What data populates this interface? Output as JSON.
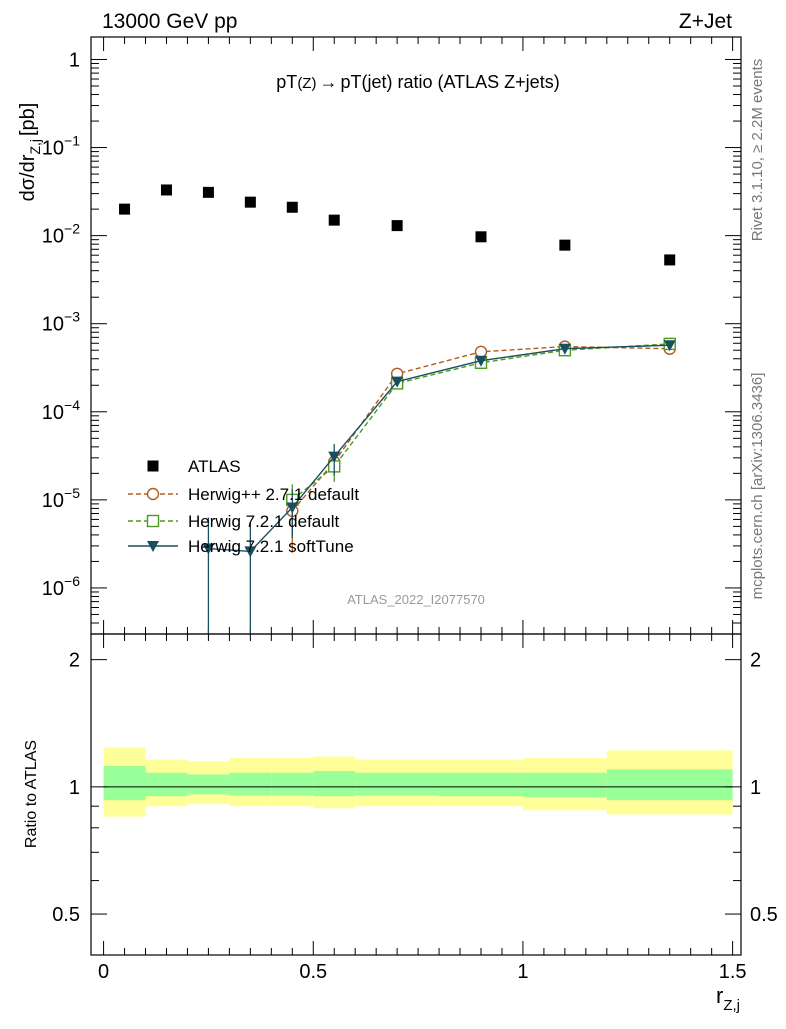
{
  "header": {
    "left": "13000 GeV pp",
    "right": "Z+Jet"
  },
  "side_labels": {
    "rivet": "Rivet 3.1.10, ≥ 2.2M events",
    "mcplots": "mcplots.cern.ch [arXiv:1306.3436]"
  },
  "watermark": "ATLAS_2022_I2077570",
  "chart_data": [
    {
      "type": "scatter",
      "panel": "main",
      "title": "pT(Z) → pT(jet) ratio (ATLAS Z+jets)",
      "title_parts": {
        "a": "pT",
        "b": "(Z)",
        "arrow": "→",
        "c": "pT(jet) ratio (ATLAS Z+jets)"
      },
      "ylabel": "dσ/dr",
      "ylabel_sub": "Z,j",
      "ylabel_unit": "[pb]",
      "yscale": "log",
      "xlim": [
        -0.03,
        1.52
      ],
      "ylim": [
        3e-07,
        1.8
      ],
      "ytick_labels": [
        {
          "value": 1,
          "base": "1",
          "exp": ""
        },
        {
          "value": 0.1,
          "base": "10",
          "exp": "−1"
        },
        {
          "value": 0.01,
          "base": "10",
          "exp": "−2"
        },
        {
          "value": 0.001,
          "base": "10",
          "exp": "−3"
        },
        {
          "value": 0.0001,
          "base": "10",
          "exp": "−4"
        },
        {
          "value": 1e-05,
          "base": "10",
          "exp": "−5"
        },
        {
          "value": 1e-06,
          "base": "10",
          "exp": "−6"
        }
      ],
      "legend_position": "lower-left",
      "series": [
        {
          "name": "ATLAS",
          "style": "data",
          "color": "#000000",
          "x": [
            0.05,
            0.15,
            0.25,
            0.35,
            0.45,
            0.55,
            0.7,
            0.9,
            1.1,
            1.35
          ],
          "y": [
            0.02,
            0.033,
            0.031,
            0.024,
            0.021,
            0.015,
            0.013,
            0.0097,
            0.0078,
            0.0053
          ]
        },
        {
          "name": "Herwig++ 2.7.1 default",
          "style": "circle",
          "color": "#b35a1f",
          "x": [
            0.45,
            0.55,
            0.7,
            0.9,
            1.1,
            1.35
          ],
          "y": [
            7.5e-06,
            2.7e-05,
            0.00027,
            0.00048,
            0.00055,
            0.00052
          ],
          "yerr_low": [
            5e-06,
            8e-06,
            0,
            0,
            0,
            0
          ],
          "yerr_high": [
            4e-06,
            8e-06,
            0,
            0,
            0,
            0
          ]
        },
        {
          "name": "Herwig 7.2.1 default",
          "style": "square",
          "color": "#4d9a1f",
          "x": [
            0.45,
            0.55,
            0.7,
            0.9,
            1.1,
            1.35
          ],
          "y": [
            1e-05,
            2.4e-05,
            0.00021,
            0.00036,
            0.0005,
            0.00059
          ],
          "yerr_low": [
            5e-06,
            8e-06,
            0,
            0,
            0,
            0
          ],
          "yerr_high": [
            5e-06,
            8e-06,
            0,
            0,
            0,
            0
          ]
        },
        {
          "name": "Herwig 7.2.1 softTune",
          "style": "triangle",
          "color": "#1a4f5f",
          "x": [
            0.25,
            0.35,
            0.45,
            0.55,
            0.7,
            0.9,
            1.1,
            1.35
          ],
          "y": [
            2.8e-06,
            2.6e-06,
            8.2e-06,
            3.1e-05,
            0.00022,
            0.00038,
            0.00052,
            0.00057
          ],
          "yerr_low": [
            2.7e-06,
            2.5e-06,
            4.5e-06,
            1.2e-05,
            0,
            0,
            0,
            0
          ],
          "yerr_high": [
            3.5e-06,
            3e-06,
            5e-06,
            1.2e-05,
            0,
            0,
            0,
            0
          ]
        }
      ]
    },
    {
      "type": "area",
      "panel": "ratio",
      "ylabel": "Ratio to ATLAS",
      "xlabel": "r",
      "xlabel_sub": "Z,j",
      "xlim": [
        -0.03,
        1.52
      ],
      "ylim": [
        0.4,
        2.3
      ],
      "xtick_labels": [
        {
          "value": 0,
          "label": "0"
        },
        {
          "value": 0.5,
          "label": "0.5"
        },
        {
          "value": 1,
          "label": "1"
        },
        {
          "value": 1.5,
          "label": "1.5"
        }
      ],
      "ytick_labels": [
        {
          "value": 0.5,
          "label": "0.5"
        },
        {
          "value": 1,
          "label": "1"
        },
        {
          "value": 2,
          "label": "2"
        }
      ],
      "band_colors": {
        "outer": "#ffff99",
        "inner": "#99ff99"
      },
      "bins": [
        {
          "lo": 0.0,
          "hi": 0.1,
          "inner": [
            0.93,
            1.12
          ],
          "outer": [
            0.85,
            1.24
          ]
        },
        {
          "lo": 0.1,
          "hi": 0.2,
          "inner": [
            0.95,
            1.08
          ],
          "outer": [
            0.9,
            1.16
          ]
        },
        {
          "lo": 0.2,
          "hi": 0.3,
          "inner": [
            0.96,
            1.07
          ],
          "outer": [
            0.91,
            1.15
          ]
        },
        {
          "lo": 0.3,
          "hi": 0.4,
          "inner": [
            0.955,
            1.08
          ],
          "outer": [
            0.9,
            1.17
          ]
        },
        {
          "lo": 0.4,
          "hi": 0.5,
          "inner": [
            0.955,
            1.08
          ],
          "outer": [
            0.9,
            1.17
          ]
        },
        {
          "lo": 0.5,
          "hi": 0.6,
          "inner": [
            0.95,
            1.09
          ],
          "outer": [
            0.89,
            1.18
          ]
        },
        {
          "lo": 0.6,
          "hi": 0.8,
          "inner": [
            0.955,
            1.08
          ],
          "outer": [
            0.9,
            1.16
          ]
        },
        {
          "lo": 0.8,
          "hi": 1.0,
          "inner": [
            0.95,
            1.08
          ],
          "outer": [
            0.9,
            1.16
          ]
        },
        {
          "lo": 1.0,
          "hi": 1.2,
          "inner": [
            0.945,
            1.08
          ],
          "outer": [
            0.88,
            1.17
          ]
        },
        {
          "lo": 1.2,
          "hi": 1.5,
          "inner": [
            0.93,
            1.1
          ],
          "outer": [
            0.86,
            1.22
          ]
        }
      ],
      "reference_line": 1
    }
  ]
}
